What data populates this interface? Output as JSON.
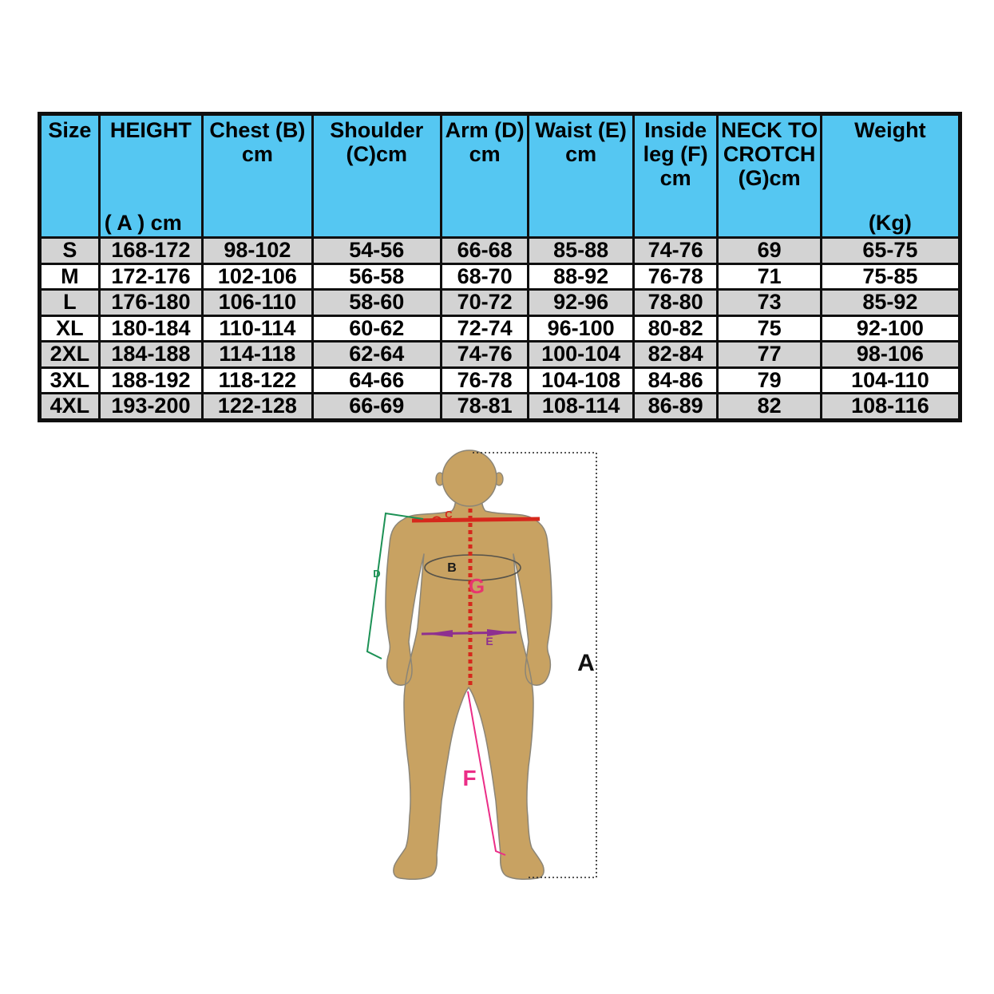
{
  "page": {
    "background": "#ffffff"
  },
  "table": {
    "header_bg": "#55C7F2",
    "row_bg": "#FFFFFF",
    "row_alt_bg": "#D3D3D3",
    "grid_color": "#0f0f0f",
    "columns": [
      {
        "label": "Size",
        "sub": ""
      },
      {
        "label": "HEIGHT",
        "sub": "( A ) cm"
      },
      {
        "label": "Chest (B)\ncm",
        "sub": ""
      },
      {
        "label": "Shoulder\n(C)cm",
        "sub": ""
      },
      {
        "label": "Arm (D)\ncm",
        "sub": ""
      },
      {
        "label": "Waist (E)\ncm",
        "sub": ""
      },
      {
        "label": "Inside\nleg (F)\ncm",
        "sub": ""
      },
      {
        "label": "NECK TO\nCROTCH\n(G)cm",
        "sub": ""
      },
      {
        "label": "Weight",
        "sub": "(Kg)"
      }
    ],
    "rows": [
      [
        "S",
        "168-172",
        "98-102",
        "54-56",
        "66-68",
        "85-88",
        "74-76",
        "69",
        "65-75"
      ],
      [
        "M",
        "172-176",
        "102-106",
        "56-58",
        "68-70",
        "88-92",
        "76-78",
        "71",
        "75-85"
      ],
      [
        "L",
        "176-180",
        "106-110",
        "58-60",
        "70-72",
        "92-96",
        "78-80",
        "73",
        "85-92"
      ],
      [
        "XL",
        "180-184",
        "110-114",
        "60-62",
        "72-74",
        "96-100",
        "80-82",
        "75",
        "92-100"
      ],
      [
        "2XL",
        "184-188",
        "114-118",
        "62-64",
        "74-76",
        "100-104",
        "82-84",
        "77",
        "98-106"
      ],
      [
        "3XL",
        "188-192",
        "118-122",
        "64-66",
        "76-78",
        "104-108",
        "84-86",
        "79",
        "104-110"
      ],
      [
        "4XL",
        "193-200",
        "122-128",
        "66-69",
        "78-81",
        "108-114",
        "86-89",
        "82",
        "108-116"
      ]
    ]
  },
  "diagram": {
    "labels": {
      "A": "A",
      "B": "B",
      "C": "C",
      "D": "D",
      "E": "E",
      "F": "F",
      "G": "G"
    },
    "colors": {
      "body_fill": "#C8A262",
      "body_outline": "#8B8577",
      "height_line": "#222222",
      "chest_line": "#55524A",
      "shoulder_line": "#D6281C",
      "arm_line": "#1C9155",
      "waist_line": "#8E3090",
      "inside_leg_line": "#EB2D87",
      "neck_crotch_line": "#D6281C",
      "crotch_label": "#E8356E",
      "height_label": "#111111",
      "chest_label": "#1a1a1a"
    }
  }
}
